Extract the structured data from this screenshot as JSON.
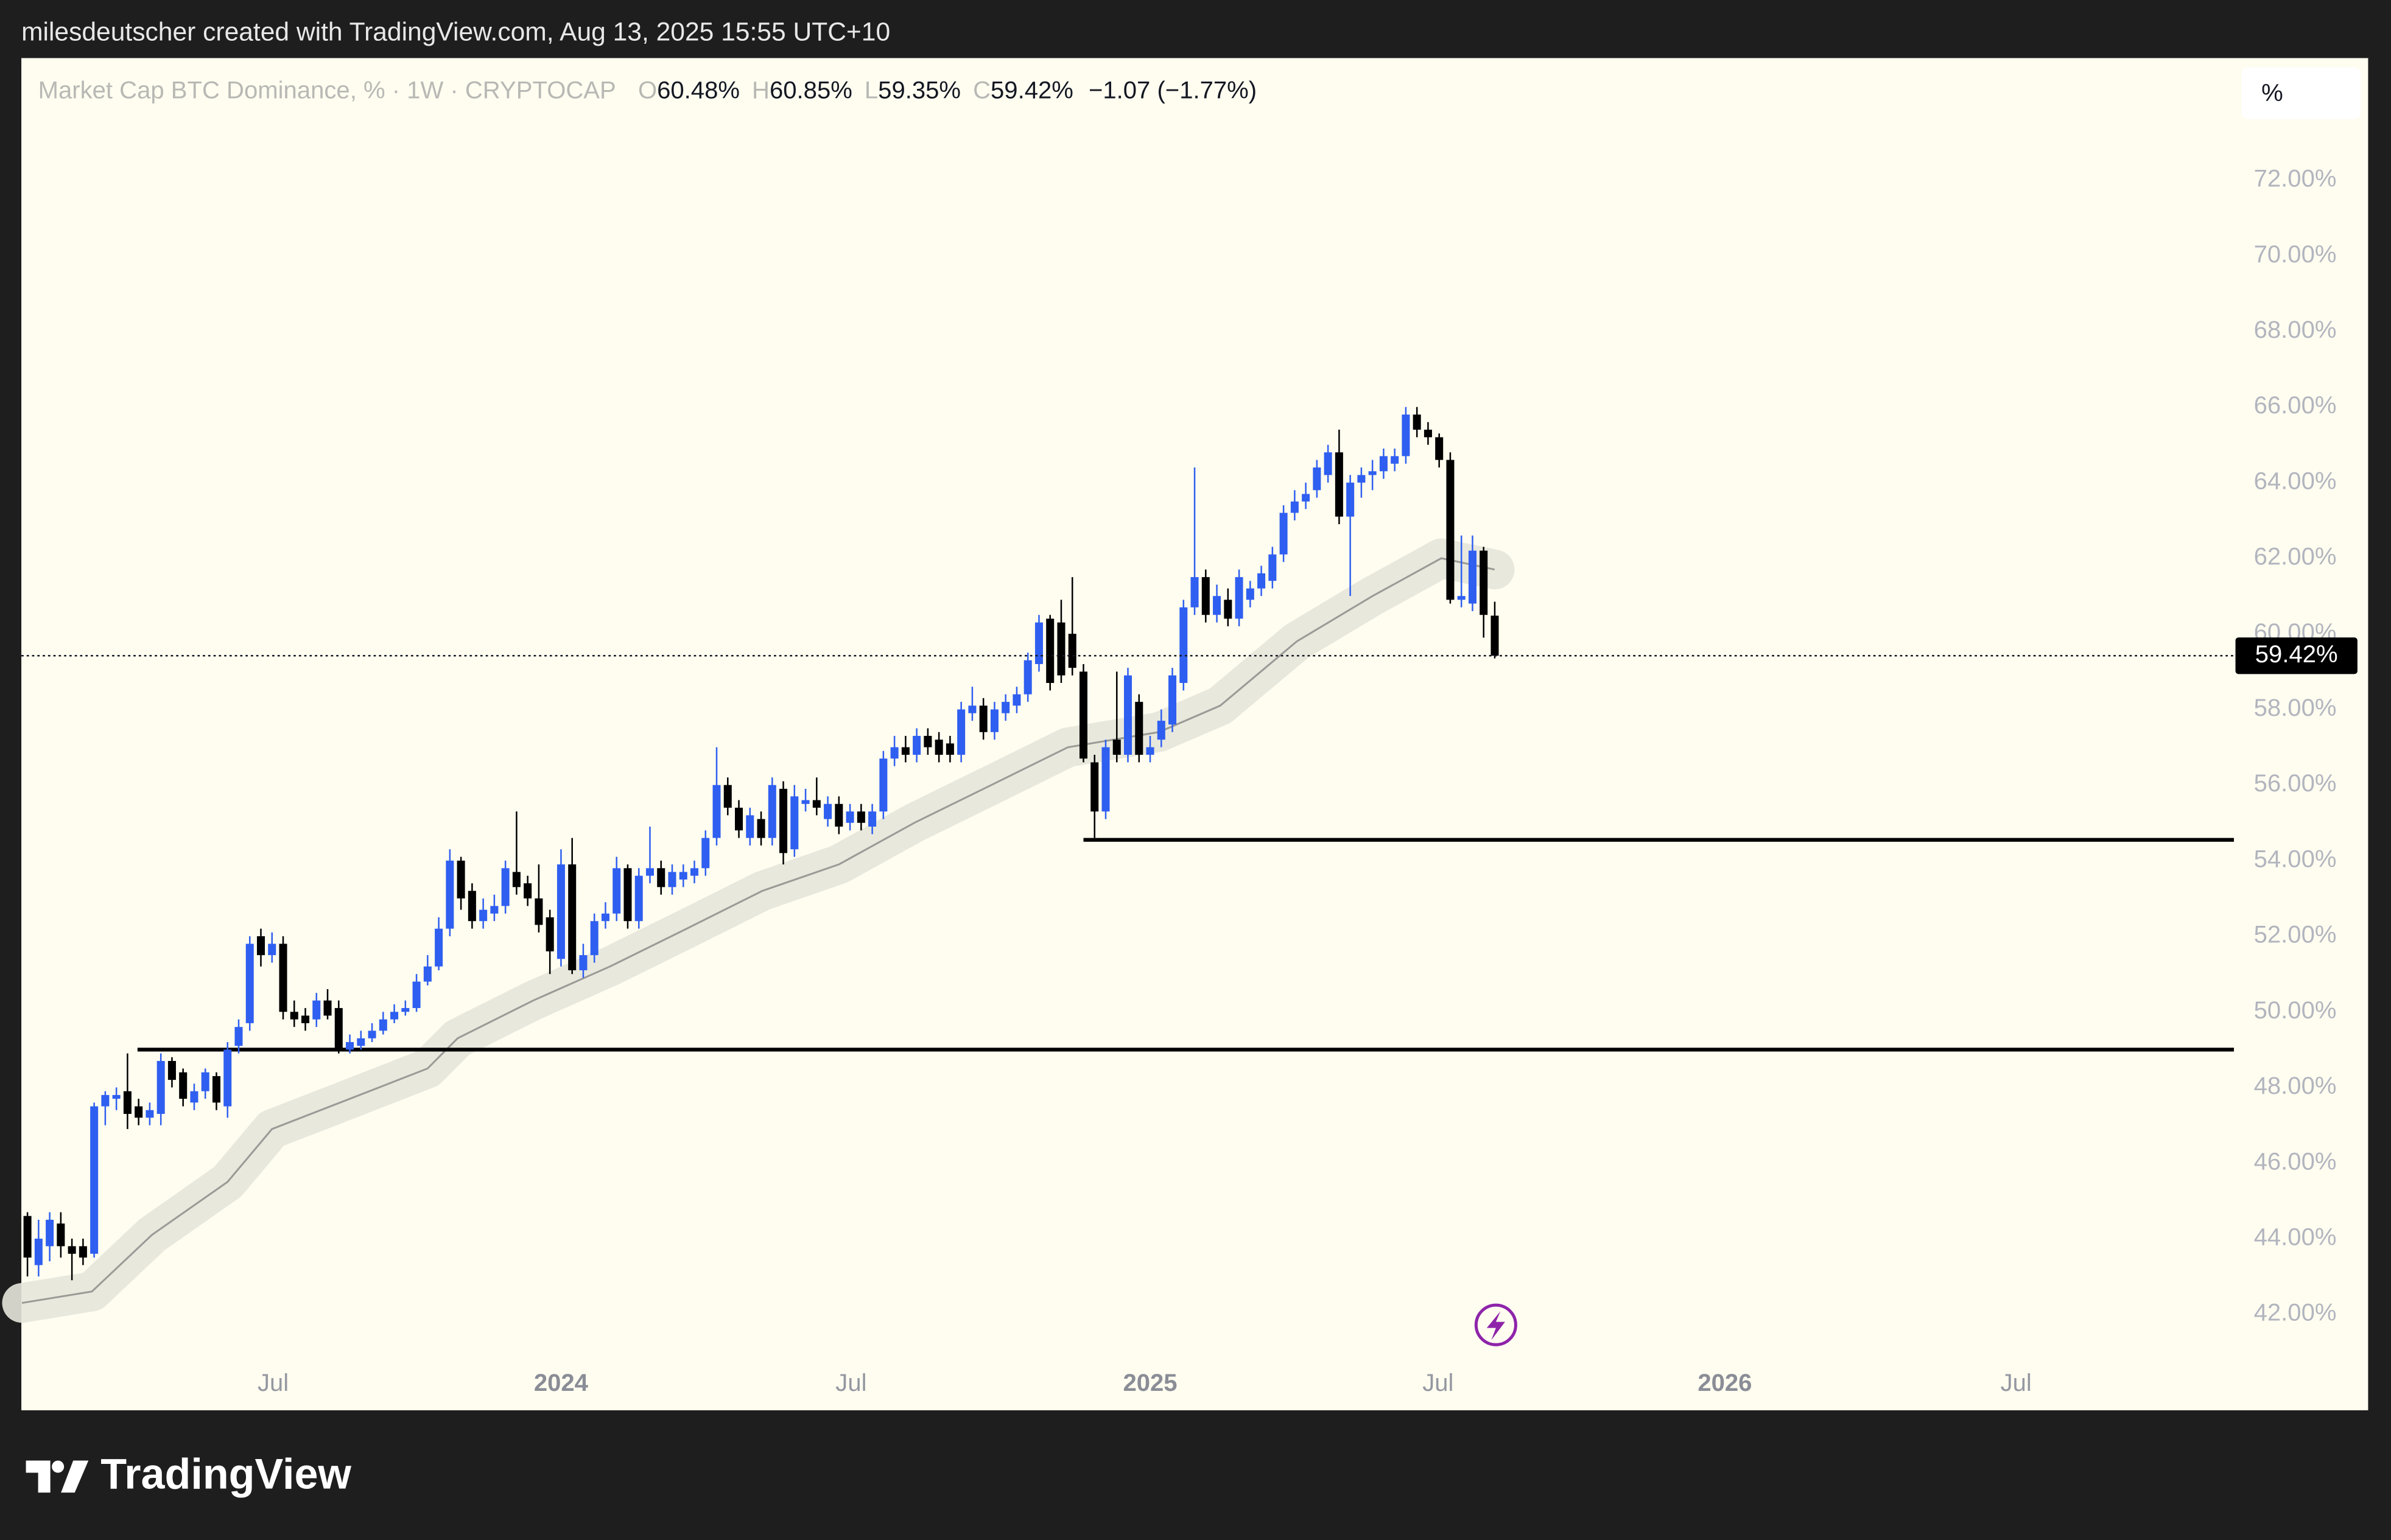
{
  "attribution": "milesdeutscher created with TradingView.com, Aug 13, 2025 15:55 UTC+10",
  "brand": "TradingView",
  "scale_button": "%",
  "chart_data": {
    "type": "candlestick",
    "title": "Market Cap BTC Dominance, % · 1W · CRYPTOCAP",
    "header": [
      {
        "key": "O",
        "text": "60.48%"
      },
      {
        "key": "H",
        "text": "60.85%"
      },
      {
        "key": "L",
        "text": "59.35%"
      },
      {
        "key": "C",
        "text": "59.42%"
      }
    ],
    "change": "−1.07 (−1.77%)",
    "last_label": "59.42%",
    "up_color": "#2f5ff0",
    "down_color": "#000000",
    "ma_color": "#9a9a96",
    "band_color": "#e6e5da",
    "grid": false,
    "open": [
      44.6,
      43.3,
      43.8,
      44.4,
      43.8,
      43.8,
      43.6,
      47.5,
      47.7,
      47.9,
      47.5,
      47.2,
      47.3,
      48.7,
      48.4,
      47.6,
      47.9,
      48.3,
      47.5,
      49.1,
      49.7,
      52.0,
      51.5,
      51.8,
      50.0,
      49.9,
      49.8,
      50.3,
      50.1,
      49.0,
      49.1,
      49.3,
      49.5,
      49.8,
      50.0,
      50.1,
      50.8,
      51.2,
      52.2,
      54.0,
      53.2,
      52.4,
      52.6,
      52.8,
      53.7,
      53.4,
      53.0,
      52.5,
      51.4,
      53.9,
      51.1,
      51.5,
      52.4,
      52.6,
      53.8,
      52.4,
      53.6,
      53.8,
      53.3,
      53.5,
      53.6,
      53.8,
      54.6,
      56.0,
      55.4,
      54.6,
      55.1,
      54.6,
      55.9,
      54.3,
      55.5,
      55.6,
      55.1,
      55.5,
      55.0,
      55.3,
      54.9,
      55.3,
      56.7,
      57.0,
      56.8,
      57.3,
      57.2,
      57.1,
      56.8,
      57.9,
      58.1,
      57.4,
      57.9,
      58.1,
      58.4,
      59.2,
      60.4,
      60.3,
      60.0,
      59.0,
      56.6,
      55.3,
      57.2,
      56.8,
      58.2,
      56.8,
      57.2,
      57.6,
      58.7,
      60.7,
      61.5,
      60.5,
      60.9,
      60.4,
      60.9,
      61.2,
      61.4,
      62.1,
      63.2,
      63.5,
      63.8,
      64.2,
      64.8,
      63.1,
      64.0,
      64.2,
      64.3,
      64.5,
      64.7,
      65.8,
      65.4,
      65.2,
      64.6,
      60.9,
      60.8,
      62.2,
      60.48
    ],
    "high": [
      44.7,
      44.5,
      44.7,
      44.7,
      44.0,
      44.0,
      47.6,
      47.9,
      48.0,
      48.9,
      47.7,
      47.6,
      48.9,
      48.8,
      48.5,
      48.1,
      48.5,
      48.4,
      49.2,
      49.8,
      52.0,
      52.2,
      52.1,
      52.0,
      50.3,
      50.1,
      50.5,
      50.6,
      50.3,
      49.4,
      49.5,
      49.7,
      50.0,
      50.2,
      50.3,
      51.0,
      51.5,
      52.5,
      54.3,
      54.1,
      53.4,
      53.0,
      53.1,
      54.0,
      55.3,
      53.6,
      53.9,
      52.7,
      54.3,
      54.6,
      51.8,
      52.6,
      52.9,
      54.1,
      53.9,
      53.8,
      54.9,
      54.0,
      53.9,
      53.9,
      54.0,
      54.8,
      57.0,
      56.2,
      55.6,
      55.4,
      55.3,
      56.2,
      56.1,
      56.0,
      55.9,
      56.2,
      55.7,
      55.7,
      55.5,
      55.5,
      55.5,
      56.9,
      57.3,
      57.3,
      57.5,
      57.5,
      57.4,
      57.3,
      58.2,
      58.6,
      58.3,
      58.2,
      58.4,
      58.6,
      59.5,
      60.5,
      60.5,
      60.9,
      61.5,
      59.2,
      56.8,
      57.2,
      59.0,
      59.1,
      58.4,
      57.3,
      58.0,
      59.1,
      60.9,
      64.4,
      61.7,
      61.3,
      61.2,
      61.7,
      61.4,
      61.8,
      62.3,
      63.4,
      63.8,
      64.0,
      64.6,
      65.0,
      65.4,
      64.2,
      64.4,
      64.6,
      64.9,
      64.9,
      66.0,
      66.0,
      65.6,
      65.3,
      64.8,
      62.6,
      62.6,
      62.3,
      60.85
    ],
    "low": [
      43.0,
      43.0,
      43.4,
      43.5,
      42.9,
      43.3,
      43.5,
      47.0,
      47.4,
      46.9,
      47.0,
      47.0,
      47.0,
      48.0,
      47.5,
      47.4,
      47.7,
      47.4,
      47.2,
      48.9,
      49.5,
      51.2,
      51.3,
      49.8,
      49.6,
      49.5,
      49.6,
      49.8,
      48.9,
      48.9,
      49.0,
      49.2,
      49.4,
      49.7,
      49.9,
      50.0,
      50.7,
      51.1,
      52.0,
      52.7,
      52.2,
      52.2,
      52.4,
      52.6,
      53.1,
      52.8,
      52.1,
      51.0,
      51.2,
      51.0,
      50.9,
      51.3,
      52.2,
      52.4,
      52.2,
      52.2,
      53.4,
      53.1,
      53.1,
      53.3,
      53.4,
      53.6,
      54.4,
      55.2,
      54.6,
      54.4,
      54.4,
      54.4,
      53.9,
      54.1,
      55.3,
      55.2,
      54.9,
      54.7,
      54.8,
      54.8,
      54.7,
      55.1,
      56.5,
      56.6,
      56.6,
      56.8,
      56.6,
      56.6,
      56.6,
      57.7,
      57.2,
      57.2,
      57.7,
      57.9,
      58.2,
      59.0,
      58.5,
      58.7,
      58.9,
      56.6,
      54.6,
      55.1,
      56.6,
      56.6,
      56.6,
      56.6,
      57.0,
      57.4,
      58.5,
      60.5,
      60.3,
      60.3,
      60.2,
      60.2,
      60.7,
      61.0,
      61.2,
      61.9,
      63.0,
      63.3,
      63.6,
      64.0,
      62.9,
      61.0,
      63.6,
      63.8,
      64.1,
      64.3,
      64.5,
      65.2,
      65.0,
      64.4,
      60.8,
      60.7,
      60.6,
      59.9,
      59.35
    ],
    "close": [
      43.5,
      44.0,
      44.5,
      43.8,
      43.6,
      43.5,
      47.5,
      47.8,
      47.8,
      47.3,
      47.2,
      47.4,
      48.7,
      48.2,
      47.7,
      47.9,
      48.4,
      47.6,
      49.0,
      49.6,
      51.8,
      51.5,
      51.8,
      50.0,
      49.8,
      49.7,
      50.3,
      49.9,
      49.0,
      49.2,
      49.3,
      49.5,
      49.8,
      50.0,
      50.1,
      50.8,
      51.2,
      52.2,
      54.0,
      53.0,
      52.4,
      52.7,
      52.8,
      53.8,
      53.3,
      53.0,
      52.3,
      51.6,
      53.9,
      51.1,
      51.5,
      52.4,
      52.6,
      53.8,
      52.4,
      53.6,
      53.8,
      53.3,
      53.7,
      53.7,
      53.8,
      54.6,
      56.0,
      55.4,
      54.8,
      55.2,
      54.6,
      56.0,
      54.2,
      55.7,
      55.6,
      55.4,
      55.5,
      54.9,
      55.3,
      55.0,
      55.3,
      56.7,
      57.0,
      56.8,
      57.3,
      57.0,
      56.8,
      56.8,
      58.0,
      58.1,
      57.4,
      58.0,
      58.2,
      58.4,
      59.3,
      60.3,
      58.7,
      58.9,
      59.1,
      56.7,
      55.3,
      57.0,
      56.8,
      58.9,
      56.8,
      57.0,
      57.7,
      58.9,
      60.7,
      61.5,
      60.5,
      61.0,
      60.4,
      61.5,
      61.2,
      61.6,
      62.1,
      63.2,
      63.5,
      63.7,
      64.4,
      64.8,
      63.1,
      64.0,
      64.2,
      64.3,
      64.7,
      64.7,
      65.8,
      65.4,
      65.2,
      64.6,
      60.9,
      61.0,
      62.2,
      60.5,
      59.42
    ],
    "ma": {
      "x": [
        -0.5,
        5.8,
        11.2,
        18,
        22,
        29,
        36,
        38.7,
        45.5,
        52.4,
        59.3,
        66.1,
        73,
        79.8,
        86.7,
        93.6,
        101.8,
        107.3,
        114.2,
        121,
        127.2,
        132
      ],
      "values": [
        42.3,
        42.6,
        44.1,
        45.5,
        46.9,
        47.7,
        48.5,
        49.3,
        50.3,
        51.2,
        52.2,
        53.2,
        53.9,
        55.0,
        56.0,
        57.0,
        57.4,
        58.1,
        59.8,
        61.0,
        62.0,
        61.7
      ]
    },
    "levels": [
      {
        "value": 54.55,
        "start": 95
      },
      {
        "value": 49.0,
        "start": 9.9
      }
    ],
    "xlim": [
      -0.55,
      198.5
    ],
    "xticks": [
      {
        "value": 22.1,
        "label": "Jul"
      },
      {
        "value": 48.0,
        "label": "2024"
      },
      {
        "value": 74.1,
        "label": "Jul"
      },
      {
        "value": 101.0,
        "label": "2025"
      },
      {
        "value": 126.9,
        "label": "Jul"
      },
      {
        "value": 152.7,
        "label": "2026"
      },
      {
        "value": 178.9,
        "label": "Jul"
      }
    ],
    "ylim": [
      39.46,
      75.23
    ],
    "yticks": [
      {
        "value": 42,
        "label": "42.00%"
      },
      {
        "value": 44,
        "label": "44.00%"
      },
      {
        "value": 46,
        "label": "46.00%"
      },
      {
        "value": 48,
        "label": "48.00%"
      },
      {
        "value": 50,
        "label": "50.00%"
      },
      {
        "value": 52,
        "label": "52.00%"
      },
      {
        "value": 54,
        "label": "54.00%"
      },
      {
        "value": 56,
        "label": "56.00%"
      },
      {
        "value": 58,
        "label": "58.00%"
      },
      {
        "value": 60,
        "label": "60.00%"
      },
      {
        "value": 62,
        "label": "62.00%"
      },
      {
        "value": 64,
        "label": "64.00%"
      },
      {
        "value": 66,
        "label": "66.00%"
      },
      {
        "value": 68,
        "label": "68.00%"
      },
      {
        "value": 70,
        "label": "70.00%"
      },
      {
        "value": 72,
        "label": "72.00%"
      }
    ]
  }
}
